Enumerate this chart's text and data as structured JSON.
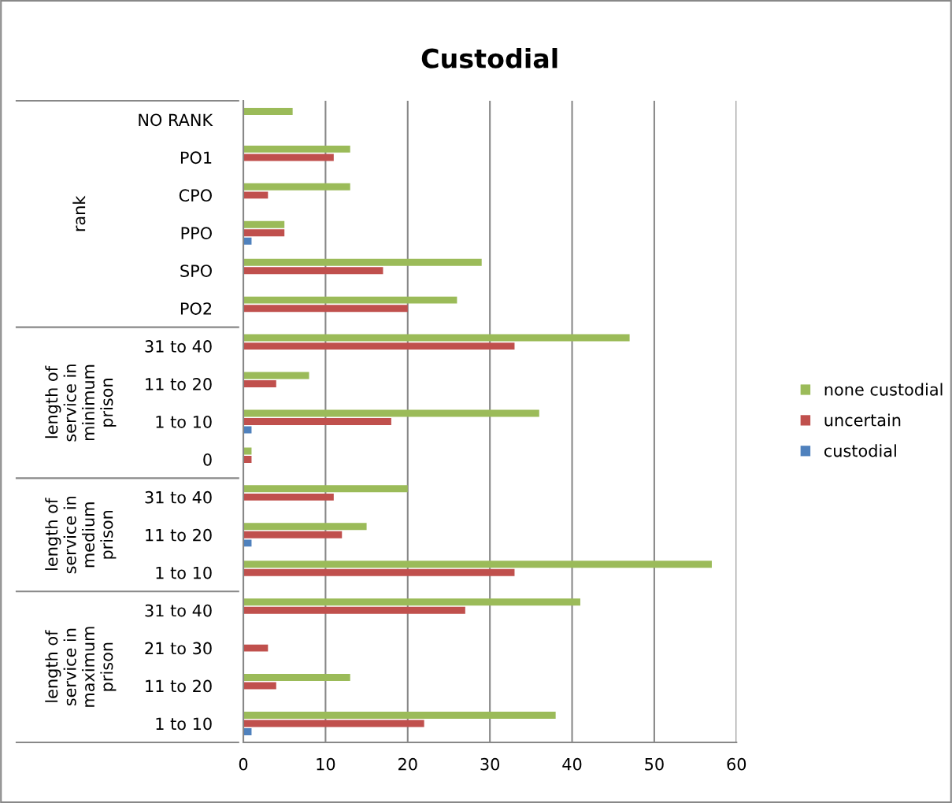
{
  "chart_data": {
    "type": "bar",
    "orientation": "horizontal",
    "title": "Custodial",
    "categories": [
      "NO RANK",
      "PO1",
      "CPO",
      "PPO",
      "SPO",
      "PO2",
      "31 to 40",
      "11 to 20",
      "1 to 10",
      "0",
      "31 to 40",
      "11 to 20",
      "1 to 10",
      "31 to 40",
      "21 to 30",
      "11 to 20",
      "1 to 10"
    ],
    "annotations": [
      "rank",
      "length of service in minimum prison",
      "length of service in medium prison",
      "length of service in maximum prison"
    ],
    "series": [
      {
        "name": "custodial",
        "color": "#4f81bd",
        "values": [
          0,
          0,
          0,
          1,
          0,
          0,
          0,
          0,
          1,
          0,
          0,
          1,
          0,
          0,
          0,
          0,
          1
        ]
      },
      {
        "name": "uncertain",
        "color": "#c0504d",
        "values": [
          0,
          11,
          3,
          5,
          17,
          20,
          33,
          4,
          18,
          1,
          11,
          12,
          33,
          27,
          3,
          4,
          22
        ]
      },
      {
        "name": "none custodial",
        "color": "#9bbb59",
        "values": [
          6,
          13,
          13,
          5,
          29,
          26,
          47,
          8,
          36,
          1,
          20,
          15,
          57,
          41,
          0,
          13,
          38
        ]
      }
    ],
    "xlim": [
      0,
      60
    ],
    "xticks": [
      0,
      10,
      20,
      30,
      40,
      50,
      60
    ],
    "grid": "x",
    "legend": "right"
  }
}
